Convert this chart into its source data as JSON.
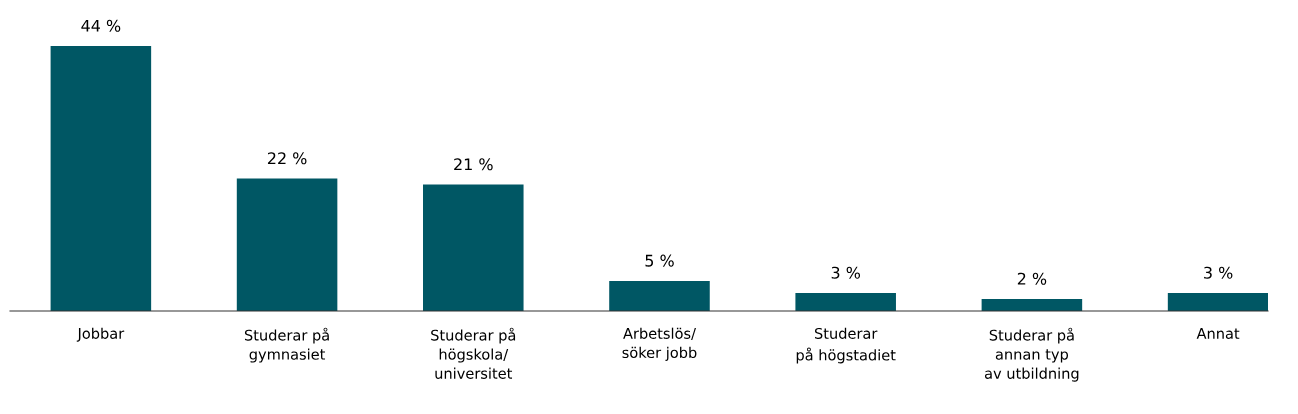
{
  "chart_data": {
    "type": "bar",
    "categories": [
      "Jobbar",
      "Studerar på\ngymnasiet",
      "Studerar på\nhögskola/\nuniversitet",
      "Arbetslös/\nsöker jobb",
      "Studerar\npå högstadiet",
      "Studerar på\nannan typ\nav utbildning",
      "Annat"
    ],
    "values": [
      44,
      22,
      21,
      5,
      3,
      2,
      3
    ],
    "value_labels": [
      "44 %",
      "22 %",
      "21 %",
      "5 %",
      "3 %",
      "2 %",
      "3 %"
    ],
    "color": "#005764",
    "tick_labels": "x",
    "grid": false,
    "legend": false
  }
}
